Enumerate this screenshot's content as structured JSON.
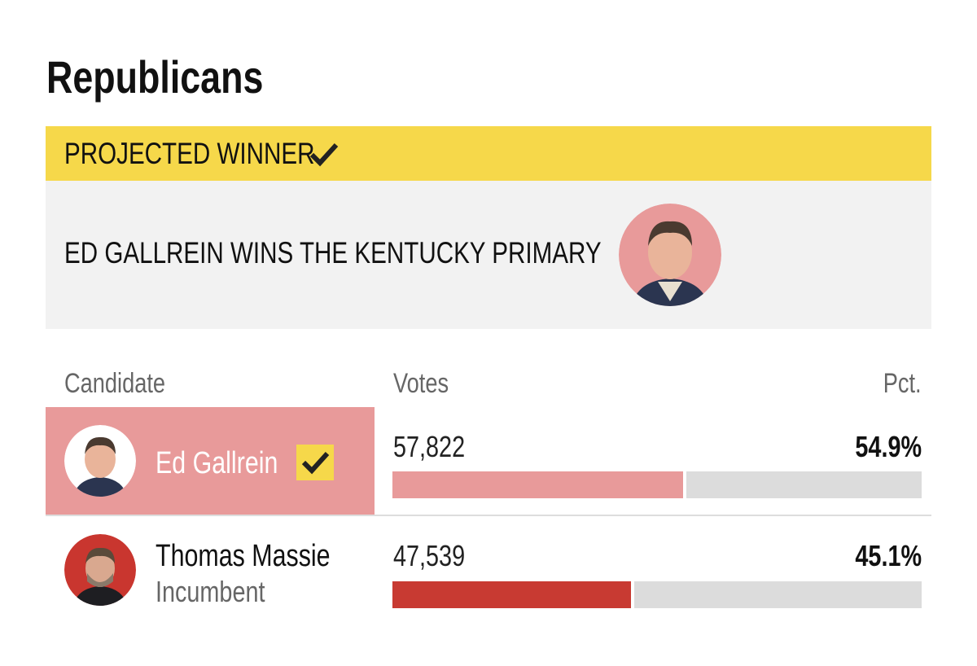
{
  "header": {
    "title": "Republicans"
  },
  "banner": {
    "label": "PROJECTED WINNER",
    "headline": "ED GALLREIN WINS THE KENTUCKY PRIMARY"
  },
  "table": {
    "columns": [
      "Candidate",
      "Votes",
      "Pct."
    ],
    "rows": [
      {
        "name": "Ed Gallrein",
        "votes": {
          "value": 57822,
          "label": "57,822"
        },
        "pct": {
          "value": 54.9,
          "label": "54.9%"
        },
        "color": "#e89a9a"
      },
      {
        "name": "Thomas Massie",
        "note": "Incumbent",
        "votes": {
          "value": 47539,
          "label": "47,539"
        },
        "pct": {
          "value": 45.1,
          "label": "45.1%"
        },
        "color": "#c83a32"
      }
    ]
  }
}
